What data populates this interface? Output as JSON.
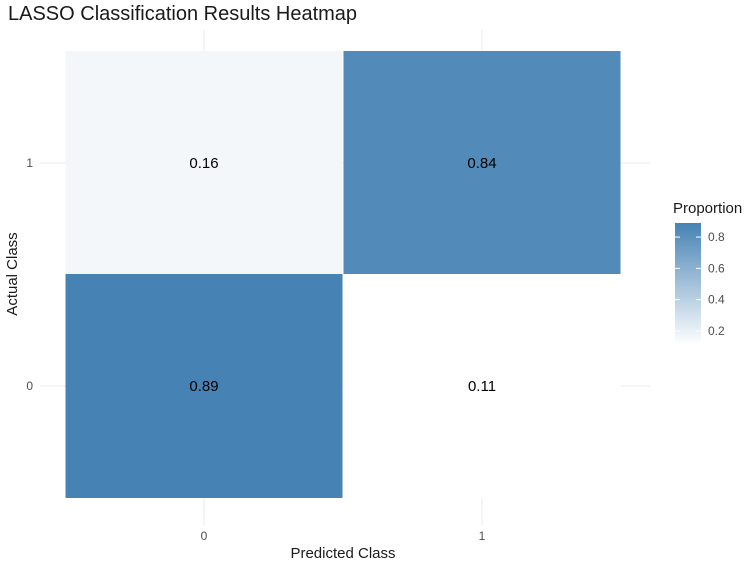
{
  "chart_data": {
    "type": "heatmap",
    "title": "LASSO Classification Results Heatmap",
    "xlabel": "Predicted Class",
    "ylabel": "Actual Class",
    "x_categories": [
      "0",
      "1"
    ],
    "y_categories": [
      "0",
      "1"
    ],
    "cells": [
      {
        "actual": "1",
        "predicted": "0",
        "value": 0.16,
        "label": "0.16"
      },
      {
        "actual": "1",
        "predicted": "1",
        "value": 0.84,
        "label": "0.84"
      },
      {
        "actual": "0",
        "predicted": "0",
        "value": 0.89,
        "label": "0.89"
      },
      {
        "actual": "0",
        "predicted": "1",
        "value": 0.11,
        "label": "0.11"
      }
    ],
    "legend": {
      "title": "Proportion",
      "placement": "right",
      "ticks": [
        "0.2",
        "0.4",
        "0.6",
        "0.8"
      ],
      "tick_values": [
        0.2,
        0.4,
        0.6,
        0.8
      ],
      "range": [
        0.11,
        0.89
      ]
    },
    "colors": {
      "low": "#ffffff",
      "high": "#4682b4"
    },
    "grid": true
  }
}
